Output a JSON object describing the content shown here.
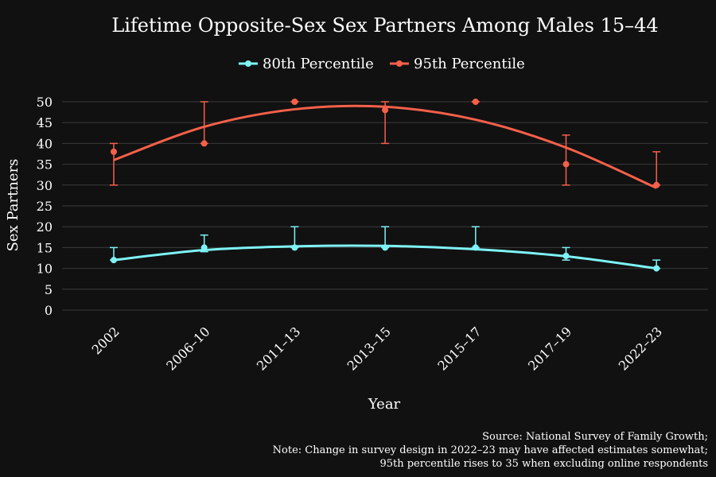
{
  "chart_data": {
    "type": "line",
    "title": "Lifetime Opposite-Sex Sex Partners Among Males 15–44",
    "xlabel": "Year",
    "ylabel": "Sex Partners",
    "categories": [
      "2002",
      "2006–10",
      "2011–13",
      "2013–15",
      "2015–17",
      "2017–19",
      "2022–23"
    ],
    "yticks": [
      0,
      5,
      10,
      15,
      20,
      25,
      30,
      35,
      40,
      45,
      50
    ],
    "ylim": [
      0,
      50
    ],
    "grid": true,
    "legend_position": "top-center",
    "series": [
      {
        "name": "80th Percentile",
        "color": "#7ef3f7",
        "values": [
          12,
          15,
          15,
          15,
          15,
          13,
          10
        ],
        "error_low": [
          12,
          14,
          15,
          15,
          15,
          12,
          10
        ],
        "error_high": [
          15,
          18,
          20,
          20,
          20,
          15,
          12
        ],
        "fit": [
          12,
          14.4,
          15.3,
          15.4,
          14.6,
          12.9,
          10
        ]
      },
      {
        "name": "95th Percentile",
        "color": "#f5604a",
        "values": [
          38,
          40,
          50,
          48,
          50,
          35,
          30
        ],
        "error_low": [
          30,
          40,
          50,
          40,
          50,
          30,
          30
        ],
        "error_high": [
          40,
          50,
          50,
          50,
          50,
          42,
          38
        ],
        "fit": [
          36,
          44,
          48.2,
          48.8,
          45.7,
          39,
          29.3
        ]
      }
    ],
    "notes": [
      "Source: National Survey of Family Growth;",
      "Note: Change in survey design in 2022–23 may have affected estimates somewhat;",
      "95th percentile rises to 35 when excluding online respondents"
    ]
  }
}
